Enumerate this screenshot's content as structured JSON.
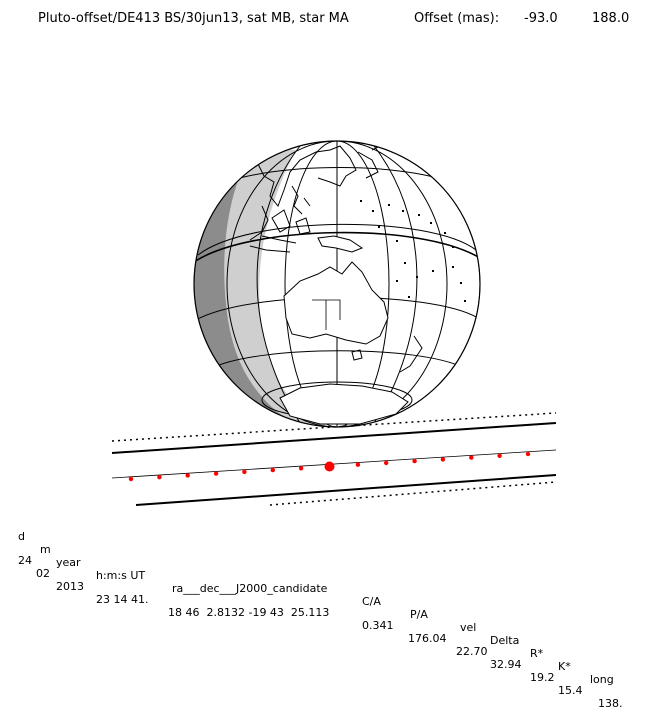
{
  "header": {
    "title": "Pluto-offset/DE413 BS/30jun13, sat MB, star MA",
    "offset_label": "Offset (mas):",
    "offset_ra": "-93.0",
    "offset_dec": "188.0"
  },
  "table": {
    "headers": [
      "d",
      "m",
      "year",
      "h:m:s UT",
      "ra___dec___J2000_candidate",
      "C/A",
      "P/A",
      "vel",
      "Delta",
      "R*",
      "K*",
      "long"
    ],
    "values": [
      "24",
      "02",
      "2013",
      "23 14 41.",
      "18 46  2.8132 -19 43  25.113",
      "0.341",
      "176.04",
      "22.70",
      "32.94",
      "19.2",
      "15.4",
      "138."
    ]
  },
  "colors": {
    "ink": "#000000",
    "night": "#8c8c8c",
    "twilight": "#cfcfcf",
    "track_dot": "#ff0000"
  },
  "map": {
    "projection": "orthographic",
    "globe_center_lat": -18,
    "globe_center_lon": 138,
    "track_dots": 15,
    "central_dot_index": 7
  }
}
